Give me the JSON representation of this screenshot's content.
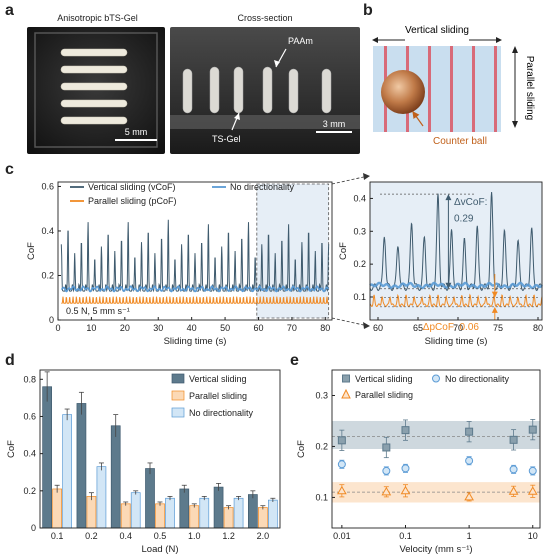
{
  "panel_labels": {
    "a": "a",
    "b": "b",
    "c": "c",
    "d": "d",
    "e": "e"
  },
  "panel_a": {
    "left_title": "Anisotropic bTS-Gel",
    "left_scale": "5 mm",
    "right_title": "Cross-section",
    "right_scale": "3 mm",
    "label_paam": "PAAm",
    "label_tsgel": "TS-Gel"
  },
  "panel_b": {
    "vertical_label": "Vertical sliding",
    "parallel_label": "Parallel sliding",
    "ball_label": "Counter ball",
    "colors": {
      "stripe": "#d86a78",
      "background": "#c9deef",
      "ball": "#b56a3c",
      "arrow": "#c0601a"
    }
  },
  "chart_data": [
    {
      "id": "c-main",
      "type": "line",
      "xlabel": "Sliding time (s)",
      "ylabel": "CoF",
      "xlim": [
        0,
        82
      ],
      "ylim": [
        0,
        0.62
      ],
      "xticks": [
        0,
        10,
        20,
        30,
        40,
        50,
        60,
        70,
        80
      ],
      "yticks": [
        0,
        0.2,
        0.4,
        0.6
      ],
      "annotation": "0.5 N, 5 mm s⁻¹",
      "series": [
        {
          "name": "Vertical sliding (vCoF)",
          "color": "#3f5b6e",
          "baseline": 0.13,
          "peak_values": [
            0.34,
            0.42,
            0.3,
            0.36,
            0.44,
            0.28,
            0.33,
            0.4,
            0.31,
            0.37,
            0.44,
            0.29,
            0.35,
            0.41,
            0.3,
            0.38,
            0.45,
            0.28,
            0.34,
            0.4,
            0.3,
            0.36,
            0.43,
            0.29,
            0.33,
            0.41,
            0.31,
            0.38,
            0.44,
            0.29,
            0.34,
            0.4,
            0.3,
            0.37,
            0.43,
            0.28,
            0.35,
            0.41,
            0.31,
            0.36
          ],
          "period_s": 2.0
        },
        {
          "name": "No directionality",
          "color": "#5b9bd5",
          "baseline": 0.14,
          "amplitude": 0.012
        },
        {
          "name": "Parallel sliding (pCoF)",
          "color": "#f08a24",
          "baseline": 0.075,
          "peak_height": 0.03,
          "period_s": 1.0
        }
      ]
    },
    {
      "id": "c-zoom",
      "type": "line",
      "xlabel": "Sliding time (s)",
      "ylabel": "CoF",
      "xlim": [
        59,
        80.5
      ],
      "ylim": [
        0.03,
        0.45
      ],
      "xticks": [
        60,
        65,
        70,
        75,
        80
      ],
      "yticks": [
        0.1,
        0.2,
        0.3,
        0.4
      ],
      "annotations": [
        {
          "text": "ΔvCoF:",
          "color": "#3f5b6e"
        },
        {
          "text": "0.29",
          "color": "#3f5b6e"
        },
        {
          "text": "ΔpCoF: 0.06",
          "color": "#f08a24"
        }
      ],
      "peak_times": [
        60.8,
        62.5,
        64.2,
        65.8,
        67.5,
        69.2,
        70.8,
        72.4,
        74.2,
        75.8,
        77.5,
        79.2
      ],
      "peak_values": [
        0.29,
        0.26,
        0.33,
        0.28,
        0.41,
        0.3,
        0.27,
        0.31,
        0.41,
        0.3,
        0.27,
        0.31
      ]
    },
    {
      "id": "d",
      "type": "bar",
      "xlabel": "Load (N)",
      "ylabel": "CoF",
      "ylim": [
        0,
        0.85
      ],
      "yticks": [
        0,
        0.2,
        0.4,
        0.6,
        0.8
      ],
      "categories": [
        "0.1",
        "0.2",
        "0.4",
        "0.5",
        "1.0",
        "1.2",
        "2.0"
      ],
      "series": [
        {
          "name": "Vertical sliding",
          "color": "#5d7a8c",
          "values": [
            0.76,
            0.67,
            0.55,
            0.32,
            0.21,
            0.22,
            0.18
          ],
          "errors": [
            0.08,
            0.06,
            0.06,
            0.03,
            0.02,
            0.02,
            0.02
          ]
        },
        {
          "name": "Parallel sliding",
          "color": "#fbd9b6",
          "edge": "#f08a24",
          "values": [
            0.21,
            0.17,
            0.13,
            0.13,
            0.12,
            0.11,
            0.11
          ],
          "errors": [
            0.02,
            0.02,
            0.01,
            0.01,
            0.01,
            0.01,
            0.01
          ]
        },
        {
          "name": "No directionality",
          "color": "#d2e6f6",
          "edge": "#5b9bd5",
          "values": [
            0.61,
            0.33,
            0.19,
            0.16,
            0.16,
            0.16,
            0.15
          ],
          "errors": [
            0.03,
            0.02,
            0.01,
            0.01,
            0.01,
            0.01,
            0.01
          ]
        }
      ]
    },
    {
      "id": "e",
      "type": "scatter",
      "xlabel": "Velocity (mm s⁻¹)",
      "ylabel": "CoF",
      "xscale": "log",
      "xlim": [
        0.007,
        13
      ],
      "ylim": [
        0.04,
        0.35
      ],
      "xticks": [
        0.01,
        0.1,
        1,
        10
      ],
      "xtick_labels": [
        "0.01",
        "0.1",
        "1",
        "10"
      ],
      "yticks": [
        0.1,
        0.2,
        0.3
      ],
      "x": [
        0.01,
        0.05,
        0.1,
        1,
        5,
        10
      ],
      "series": [
        {
          "name": "Vertical sliding",
          "marker": "square",
          "color": "#5d7a8c",
          "values": [
            0.212,
            0.198,
            0.232,
            0.229,
            0.213,
            0.233
          ],
          "errors": [
            0.02,
            0.02,
            0.02,
            0.02,
            0.02,
            0.02
          ],
          "band": [
            0.195,
            0.25
          ]
        },
        {
          "name": "No directionality",
          "marker": "circle",
          "color": "#5b9bd5",
          "values": [
            0.165,
            0.152,
            0.157,
            0.172,
            0.155,
            0.152
          ],
          "errors": [
            0.008,
            0.008,
            0.008,
            0.008,
            0.008,
            0.008
          ]
        },
        {
          "name": "Parallel sliding",
          "marker": "triangle",
          "color": "#f08a24",
          "values": [
            0.113,
            0.111,
            0.113,
            0.101,
            0.112,
            0.112
          ],
          "errors": [
            0.012,
            0.01,
            0.012,
            0.008,
            0.01,
            0.012
          ],
          "band": [
            0.09,
            0.13
          ]
        }
      ]
    }
  ]
}
